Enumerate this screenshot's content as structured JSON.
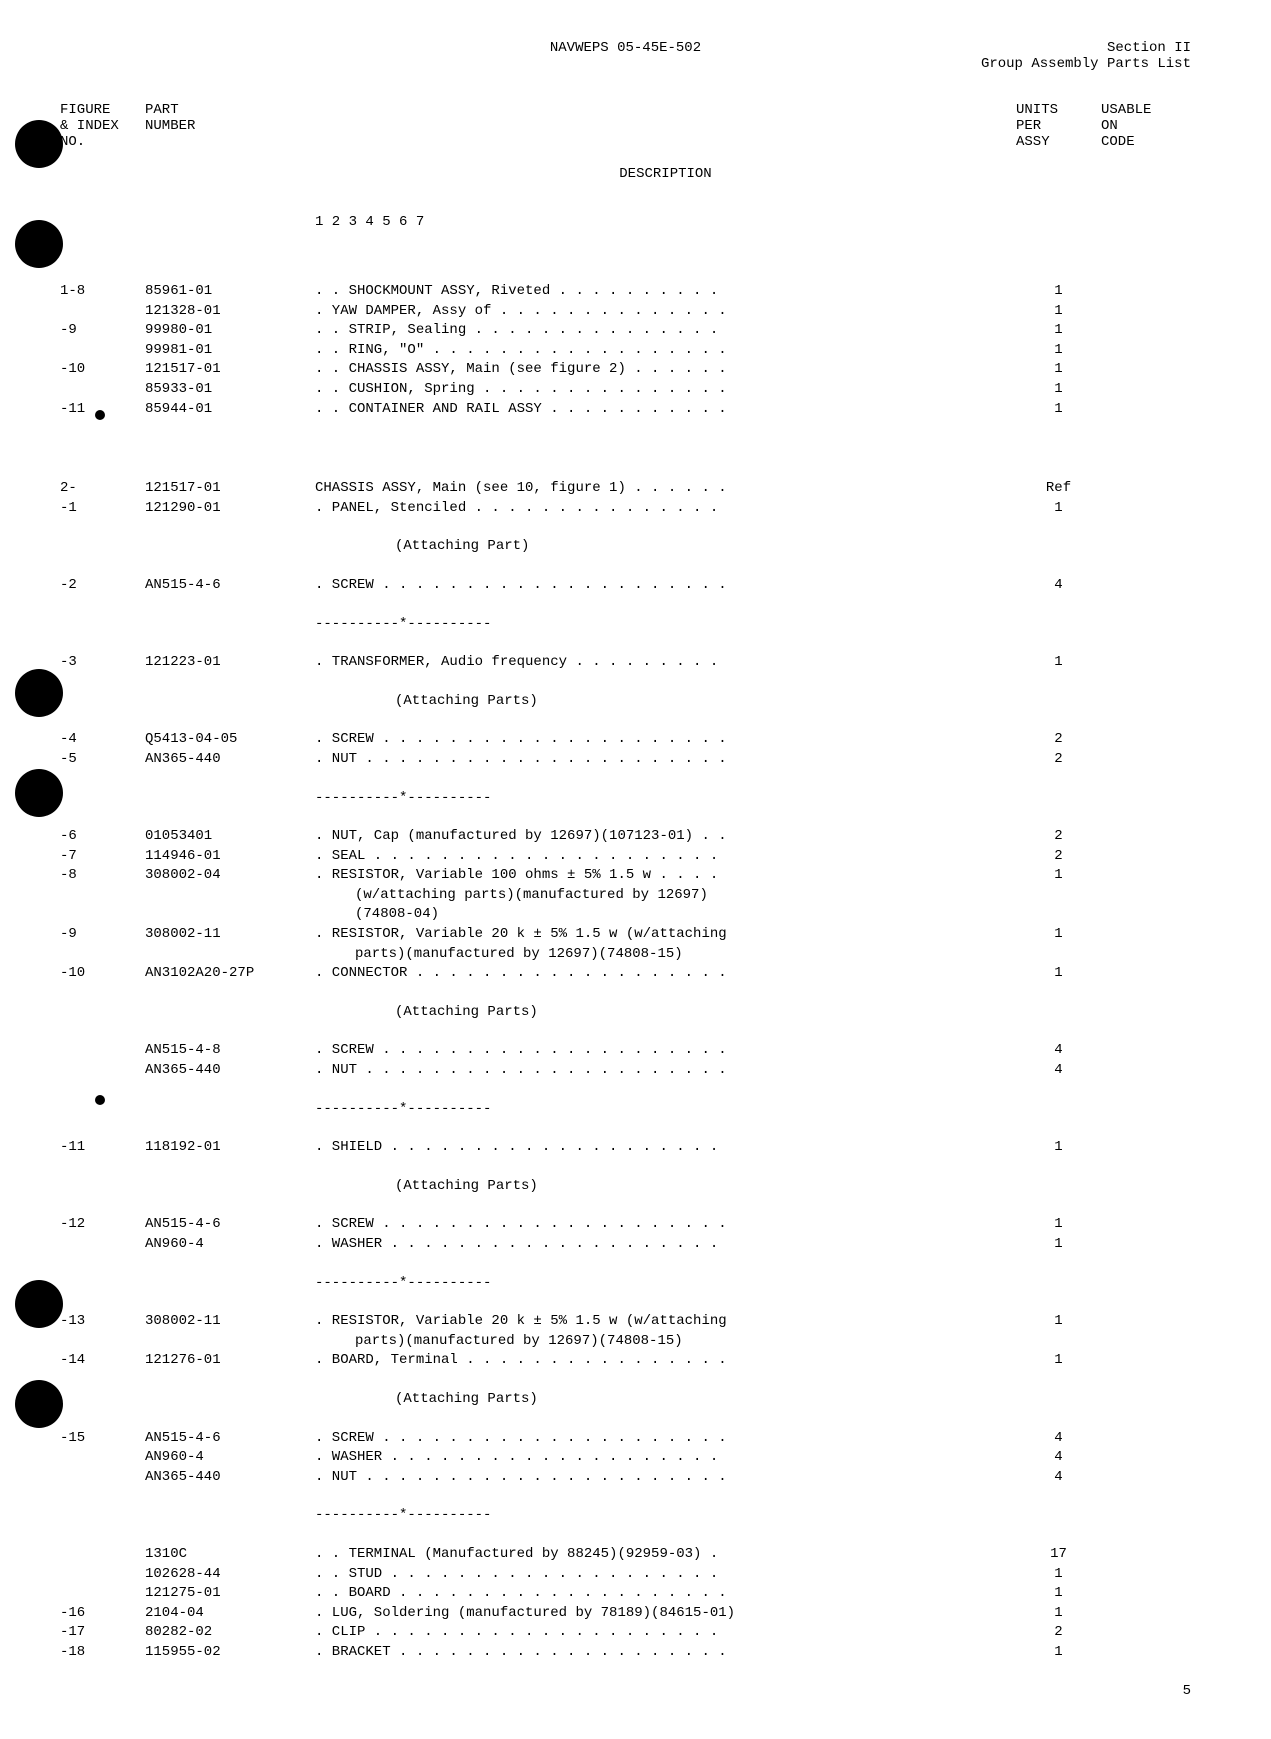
{
  "header": {
    "doc_number": "NAVWEPS 05-45E-502",
    "section": "Section II",
    "subtitle": "Group Assembly Parts List"
  },
  "columns": {
    "figure": [
      "FIGURE",
      "& INDEX",
      "NO."
    ],
    "part": [
      "PART",
      "NUMBER",
      ""
    ],
    "description": [
      "",
      "DESCRIPTION",
      "1 2 3 4 5 6 7"
    ],
    "units": [
      "UNITS",
      "PER",
      "ASSY"
    ],
    "usable": [
      "USABLE",
      "ON",
      "CODE"
    ]
  },
  "rows": [
    {
      "figure": "1-8",
      "part": "85961-01",
      "indent": 2,
      "desc": "SHOCKMOUNT ASSY, Riveted",
      "dots": true,
      "units": "1"
    },
    {
      "figure": "",
      "part": "121328-01",
      "indent": 1,
      "desc": "YAW DAMPER, Assy of",
      "dots": true,
      "units": "1"
    },
    {
      "figure": " -9",
      "part": "99980-01",
      "indent": 2,
      "desc": "STRIP, Sealing",
      "dots": true,
      "units": "1"
    },
    {
      "figure": "",
      "part": "99981-01",
      "indent": 2,
      "desc": "RING, \"O\"",
      "dots": true,
      "units": "1"
    },
    {
      "figure": " -10",
      "part": "121517-01",
      "indent": 2,
      "desc": "CHASSIS ASSY, Main (see figure 2)",
      "dots": true,
      "units": "1"
    },
    {
      "figure": "",
      "part": "85933-01",
      "indent": 2,
      "desc": "CUSHION, Spring",
      "dots": true,
      "units": "1"
    },
    {
      "figure": " -11",
      "part": "85944-01",
      "indent": 2,
      "desc": "CONTAINER AND RAIL ASSY",
      "dots": true,
      "units": "1"
    },
    {
      "type": "section-gap"
    },
    {
      "figure": "2-",
      "part": "121517-01",
      "indent": 0,
      "desc": "CHASSIS ASSY, Main (see 10, figure 1)",
      "dots": true,
      "units": "Ref"
    },
    {
      "figure": " -1",
      "part": "121290-01",
      "indent": 1,
      "desc": "PANEL, Stenciled",
      "dots": true,
      "units": "1"
    },
    {
      "type": "attach",
      "text": "(Attaching Part)"
    },
    {
      "figure": " -2",
      "part": "AN515-4-6",
      "indent": 1,
      "desc": "SCREW",
      "dots": true,
      "units": "4"
    },
    {
      "type": "separator"
    },
    {
      "figure": " -3",
      "part": "121223-01",
      "indent": 1,
      "desc": "TRANSFORMER, Audio frequency",
      "dots": true,
      "units": "1"
    },
    {
      "type": "attach",
      "text": "(Attaching Parts)"
    },
    {
      "figure": " -4",
      "part": "Q5413-04-05",
      "indent": 1,
      "desc": "SCREW",
      "dots": true,
      "units": "2"
    },
    {
      "figure": " -5",
      "part": "AN365-440",
      "indent": 1,
      "desc": "NUT",
      "dots": true,
      "units": "2"
    },
    {
      "type": "separator"
    },
    {
      "figure": " -6",
      "part": "01053401",
      "indent": 1,
      "desc": "NUT, Cap (manufactured by 12697)(107123-01)",
      "dots": true,
      "units": "2"
    },
    {
      "figure": " -7",
      "part": "114946-01",
      "indent": 1,
      "desc": "SEAL",
      "dots": true,
      "units": "2"
    },
    {
      "figure": " -8",
      "part": "308002-04",
      "indent": 1,
      "desc": "RESISTOR, Variable 100 ohms ± 5% 1.5 w",
      "dots": true,
      "units": "1"
    },
    {
      "type": "cont",
      "text": "(w/attaching parts)(manufactured by 12697)"
    },
    {
      "type": "cont",
      "text": "(74808-04)"
    },
    {
      "figure": " -9",
      "part": "308002-11",
      "indent": 1,
      "desc": "RESISTOR, Variable 20 k ± 5% 1.5 w (w/attaching",
      "dots": true,
      "units": "1"
    },
    {
      "type": "cont",
      "text": "parts)(manufactured by 12697)(74808-15)"
    },
    {
      "figure": " -10",
      "part": "AN3102A20-27P",
      "indent": 1,
      "desc": "CONNECTOR",
      "dots": true,
      "units": "1"
    },
    {
      "type": "attach",
      "text": "(Attaching Parts)"
    },
    {
      "figure": "",
      "part": "AN515-4-8",
      "indent": 1,
      "desc": "SCREW",
      "dots": true,
      "units": "4"
    },
    {
      "figure": "",
      "part": "AN365-440",
      "indent": 1,
      "desc": "NUT",
      "dots": true,
      "units": "4"
    },
    {
      "type": "separator"
    },
    {
      "figure": " -11",
      "part": "118192-01",
      "indent": 1,
      "desc": "SHIELD",
      "dots": true,
      "units": "1"
    },
    {
      "type": "attach",
      "text": "(Attaching Parts)"
    },
    {
      "figure": " -12",
      "part": "AN515-4-6",
      "indent": 1,
      "desc": "SCREW",
      "dots": true,
      "units": "1"
    },
    {
      "figure": "",
      "part": "AN960-4",
      "indent": 1,
      "desc": "WASHER",
      "dots": true,
      "units": "1"
    },
    {
      "type": "separator"
    },
    {
      "figure": " -13",
      "part": "308002-11",
      "indent": 1,
      "desc": "RESISTOR, Variable 20 k ± 5% 1.5 w (w/attaching",
      "dots": true,
      "units": "1"
    },
    {
      "type": "cont",
      "text": "parts)(manufactured by 12697)(74808-15)"
    },
    {
      "figure": " -14",
      "part": "121276-01",
      "indent": 1,
      "desc": "BOARD, Terminal",
      "dots": true,
      "units": "1"
    },
    {
      "type": "attach",
      "text": "(Attaching Parts)"
    },
    {
      "figure": " -15",
      "part": "AN515-4-6",
      "indent": 1,
      "desc": "SCREW",
      "dots": true,
      "units": "4"
    },
    {
      "figure": "",
      "part": "AN960-4",
      "indent": 1,
      "desc": "WASHER",
      "dots": true,
      "units": "4"
    },
    {
      "figure": "",
      "part": "AN365-440",
      "indent": 1,
      "desc": "NUT",
      "dots": true,
      "units": "4"
    },
    {
      "type": "separator"
    },
    {
      "figure": "",
      "part": "1310C",
      "indent": 2,
      "desc": "TERMINAL (Manufactured by 88245)(92959-03)",
      "dots": true,
      "units": "17"
    },
    {
      "figure": "",
      "part": "102628-44",
      "indent": 2,
      "desc": "STUD",
      "dots": true,
      "units": "1"
    },
    {
      "figure": "",
      "part": "121275-01",
      "indent": 2,
      "desc": "BOARD",
      "dots": true,
      "units": "1"
    },
    {
      "figure": " -16",
      "part": "2104-04",
      "indent": 1,
      "desc": "LUG, Soldering (manufactured by 78189)(84615-01)",
      "dots": true,
      "units": "1"
    },
    {
      "figure": " -17",
      "part": "80282-02",
      "indent": 1,
      "desc": "CLIP",
      "dots": true,
      "units": "2"
    },
    {
      "figure": " -18",
      "part": "115955-02",
      "indent": 1,
      "desc": "BRACKET",
      "dots": true,
      "units": "1"
    }
  ],
  "separator_text": "----------*----------",
  "page_number": "5"
}
